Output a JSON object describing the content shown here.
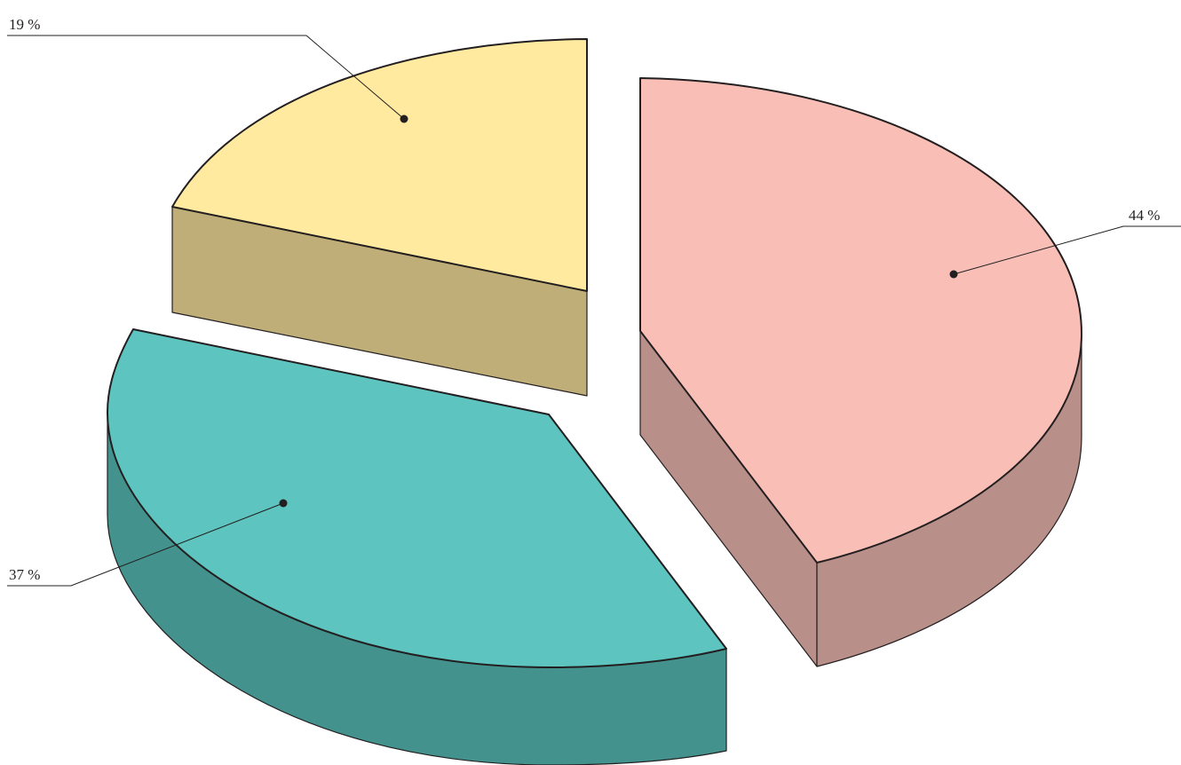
{
  "chart_data": {
    "type": "pie",
    "style": "3d-exploded",
    "slices": [
      {
        "label": "44 %",
        "value": 44,
        "color": "#f9beb6",
        "side_color": "#b88f89"
      },
      {
        "label": "37 %",
        "value": 37,
        "color": "#5dc4bf",
        "side_color": "#43928d"
      },
      {
        "label": "19 %",
        "value": 19,
        "color": "#ffeaa0",
        "side_color": "#bfae78"
      }
    ],
    "legend": "none"
  }
}
